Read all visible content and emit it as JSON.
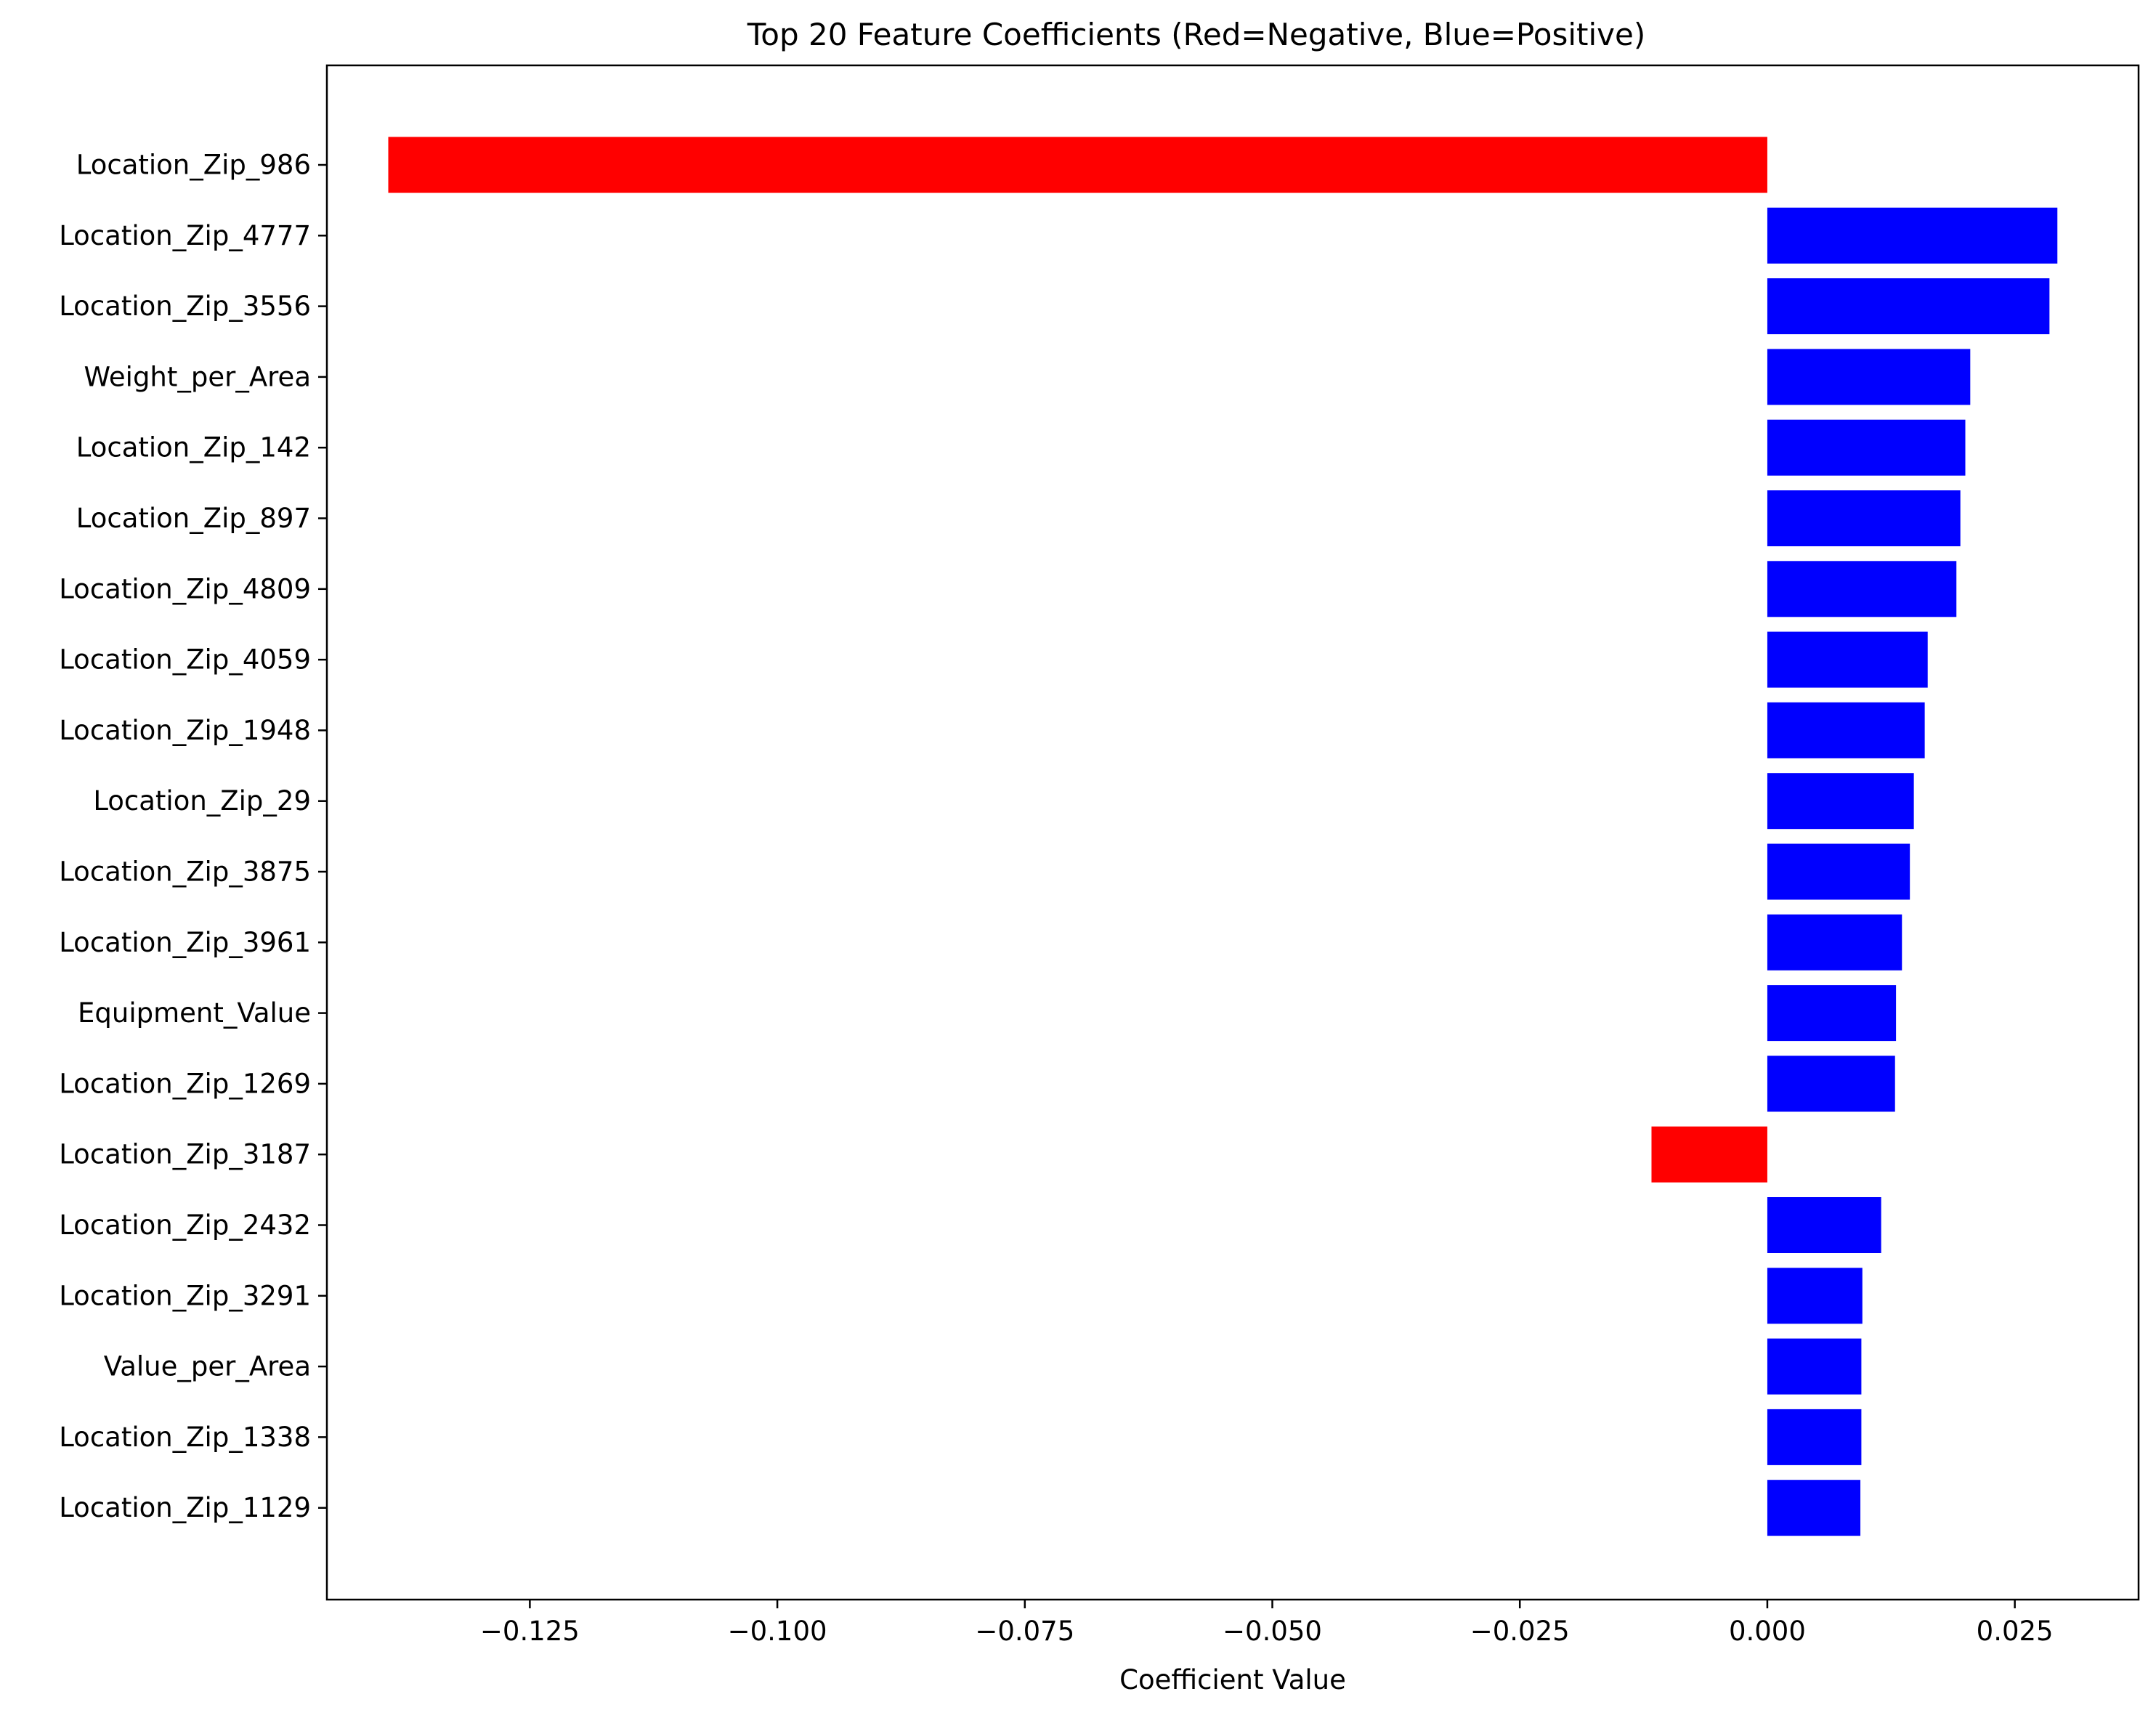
{
  "chart_data": {
    "type": "bar",
    "orientation": "horizontal",
    "title": "Top 20 Feature Coefficients (Red=Negative, Blue=Positive)",
    "xlabel": "Coefficient Value",
    "ylabel": "",
    "xlim": [
      -0.1455,
      0.0375
    ],
    "xticks": [
      -0.125,
      -0.1,
      -0.075,
      -0.05,
      -0.025,
      0.0,
      0.025
    ],
    "xtick_labels": [
      "−0.125",
      "−0.100",
      "−0.075",
      "−0.050",
      "−0.025",
      "0.000",
      "0.025"
    ],
    "grid": false,
    "colors": {
      "negative": "#ff0000",
      "positive": "#0000ff"
    },
    "categories": [
      "Location_Zip_986",
      "Location_Zip_4777",
      "Location_Zip_3556",
      "Weight_per_Area",
      "Location_Zip_142",
      "Location_Zip_897",
      "Location_Zip_4809",
      "Location_Zip_4059",
      "Location_Zip_1948",
      "Location_Zip_29",
      "Location_Zip_3875",
      "Location_Zip_3961",
      "Equipment_Value",
      "Location_Zip_1269",
      "Location_Zip_3187",
      "Location_Zip_2432",
      "Location_Zip_3291",
      "Value_per_Area",
      "Location_Zip_1338",
      "Location_Zip_1129"
    ],
    "values": [
      -0.1393,
      0.0293,
      0.0285,
      0.0205,
      0.02,
      0.0195,
      0.0191,
      0.0162,
      0.0159,
      0.0148,
      0.0144,
      0.0136,
      0.013,
      0.0129,
      -0.0117,
      0.0115,
      0.0096,
      0.0095,
      0.0095,
      0.0094
    ]
  }
}
